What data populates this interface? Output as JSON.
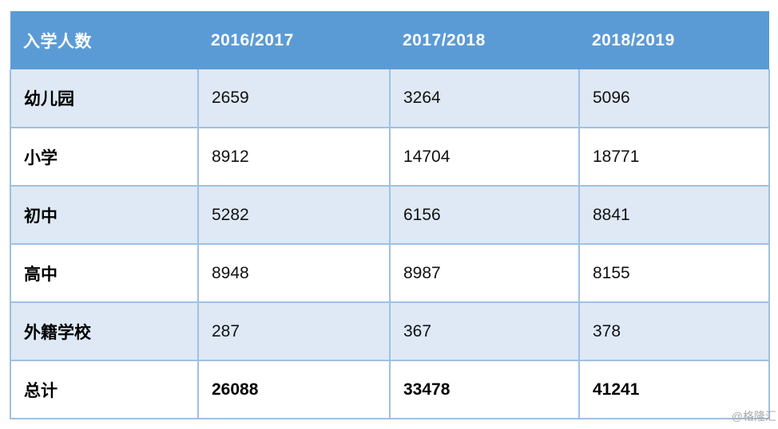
{
  "table": {
    "header": {
      "category": "入学人数",
      "y1": "2016/2017",
      "y2": "2017/2018",
      "y3": "2018/2019"
    },
    "rows": [
      {
        "label": "幼儿园",
        "values": [
          "2659",
          "3264",
          "5096"
        ]
      },
      {
        "label": "小学",
        "values": [
          "8912",
          "14704",
          "18771"
        ]
      },
      {
        "label": "初中",
        "values": [
          "5282",
          "6156",
          "8841"
        ]
      },
      {
        "label": "高中",
        "values": [
          "8948",
          "8987",
          "8155"
        ]
      },
      {
        "label": "外籍学校",
        "values": [
          "287",
          "367",
          "378"
        ]
      },
      {
        "label": "总计",
        "values": [
          "26088",
          "33478",
          "41241"
        ]
      }
    ]
  },
  "watermark": "@格隆汇",
  "colors": {
    "header_bg": "#5B9BD5",
    "header_text": "#FFFFFF",
    "banded_row_bg": "#DEE9F5",
    "plain_row_bg": "#FFFFFF",
    "cell_border": "#9FC0E2",
    "body_text": "#111111",
    "watermark_text": "#A9A9A9"
  },
  "chart_data": {
    "type": "table",
    "title": "入学人数",
    "categories": [
      "2016/2017",
      "2017/2018",
      "2018/2019"
    ],
    "series": [
      {
        "name": "幼儿园",
        "values": [
          2659,
          3264,
          5096
        ]
      },
      {
        "name": "小学",
        "values": [
          8912,
          14704,
          18771
        ]
      },
      {
        "name": "初中",
        "values": [
          5282,
          6156,
          8841
        ]
      },
      {
        "name": "高中",
        "values": [
          8948,
          8987,
          8155
        ]
      },
      {
        "name": "外籍学校",
        "values": [
          287,
          367,
          378
        ]
      },
      {
        "name": "总计",
        "values": [
          26088,
          33478,
          41241
        ]
      }
    ],
    "layout_hints": {
      "header_style": "solid blue band, white bold text",
      "row_banding": "alternating light-blue / white starting light-blue",
      "total_row": "总计 row bold"
    }
  }
}
